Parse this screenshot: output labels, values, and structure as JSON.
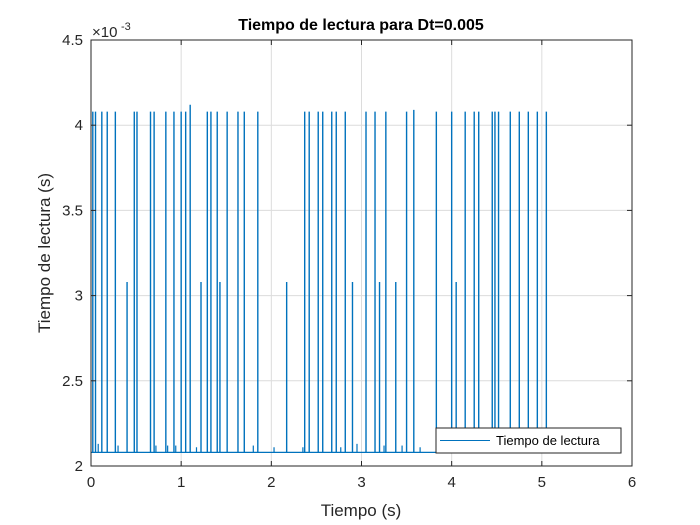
{
  "chart_data": {
    "type": "line",
    "title": "Tiempo de lectura para Dt=0.005",
    "xlabel": "Tiempo (s)",
    "ylabel": "Tiempo de lectura (s)",
    "xlim": [
      0,
      6
    ],
    "ylim": [
      2,
      4.5
    ],
    "y_exponent_label": "×10",
    "y_exponent_power": "-3",
    "xticks": [
      "0",
      "1",
      "2",
      "3",
      "4",
      "5",
      "6"
    ],
    "yticks": [
      "2",
      "2.5",
      "3",
      "3.5",
      "4",
      "4.5"
    ],
    "grid": true,
    "legend_position": "bottom-right",
    "series": [
      {
        "name": "Tiempo de lectura",
        "color": "#0072BD",
        "baseline": 2.08,
        "x_end": 5.07,
        "spikes": [
          {
            "x": 0.02,
            "y": 4.08
          },
          {
            "x": 0.05,
            "y": 4.08
          },
          {
            "x": 0.12,
            "y": 4.08
          },
          {
            "x": 0.18,
            "y": 4.08
          },
          {
            "x": 0.27,
            "y": 4.08
          },
          {
            "x": 0.4,
            "y": 3.08
          },
          {
            "x": 0.48,
            "y": 4.08
          },
          {
            "x": 0.51,
            "y": 4.08
          },
          {
            "x": 0.66,
            "y": 4.08
          },
          {
            "x": 0.7,
            "y": 4.08
          },
          {
            "x": 0.83,
            "y": 4.08
          },
          {
            "x": 0.92,
            "y": 4.08
          },
          {
            "x": 1.0,
            "y": 4.08
          },
          {
            "x": 1.05,
            "y": 4.08
          },
          {
            "x": 1.1,
            "y": 4.12
          },
          {
            "x": 1.22,
            "y": 3.08
          },
          {
            "x": 1.29,
            "y": 4.08
          },
          {
            "x": 1.33,
            "y": 4.08
          },
          {
            "x": 1.4,
            "y": 4.08
          },
          {
            "x": 1.43,
            "y": 3.08
          },
          {
            "x": 1.51,
            "y": 4.08
          },
          {
            "x": 1.63,
            "y": 4.08
          },
          {
            "x": 1.7,
            "y": 4.08
          },
          {
            "x": 1.85,
            "y": 4.08
          },
          {
            "x": 2.17,
            "y": 3.08
          },
          {
            "x": 2.37,
            "y": 4.08
          },
          {
            "x": 2.42,
            "y": 4.08
          },
          {
            "x": 2.52,
            "y": 4.08
          },
          {
            "x": 2.57,
            "y": 4.08
          },
          {
            "x": 2.67,
            "y": 4.08
          },
          {
            "x": 2.72,
            "y": 4.08
          },
          {
            "x": 2.82,
            "y": 4.08
          },
          {
            "x": 2.9,
            "y": 3.08
          },
          {
            "x": 3.05,
            "y": 4.08
          },
          {
            "x": 3.15,
            "y": 4.08
          },
          {
            "x": 3.2,
            "y": 3.08
          },
          {
            "x": 3.27,
            "y": 4.08
          },
          {
            "x": 3.38,
            "y": 3.08
          },
          {
            "x": 3.5,
            "y": 4.08
          },
          {
            "x": 3.58,
            "y": 4.09
          },
          {
            "x": 3.83,
            "y": 4.08
          },
          {
            "x": 4.0,
            "y": 4.08
          },
          {
            "x": 4.05,
            "y": 3.08
          },
          {
            "x": 4.15,
            "y": 4.08
          },
          {
            "x": 4.25,
            "y": 4.08
          },
          {
            "x": 4.3,
            "y": 4.08
          },
          {
            "x": 4.45,
            "y": 4.08
          },
          {
            "x": 4.48,
            "y": 4.08
          },
          {
            "x": 4.52,
            "y": 4.08
          },
          {
            "x": 4.65,
            "y": 4.08
          },
          {
            "x": 4.75,
            "y": 4.08
          },
          {
            "x": 4.85,
            "y": 4.08
          },
          {
            "x": 4.95,
            "y": 4.08
          },
          {
            "x": 5.05,
            "y": 4.08
          }
        ],
        "small_bumps": [
          {
            "x": 0.08,
            "y": 2.13
          },
          {
            "x": 0.3,
            "y": 2.12
          },
          {
            "x": 0.72,
            "y": 2.12
          },
          {
            "x": 0.85,
            "y": 2.12
          },
          {
            "x": 0.94,
            "y": 2.12
          },
          {
            "x": 1.17,
            "y": 2.11
          },
          {
            "x": 1.8,
            "y": 2.12
          },
          {
            "x": 2.03,
            "y": 2.11
          },
          {
            "x": 2.35,
            "y": 2.11
          },
          {
            "x": 2.77,
            "y": 2.11
          },
          {
            "x": 2.95,
            "y": 2.13
          },
          {
            "x": 3.25,
            "y": 2.12
          },
          {
            "x": 3.45,
            "y": 2.12
          },
          {
            "x": 3.65,
            "y": 2.11
          },
          {
            "x": 4.1,
            "y": 2.12
          },
          {
            "x": 4.2,
            "y": 2.12
          }
        ]
      }
    ]
  }
}
